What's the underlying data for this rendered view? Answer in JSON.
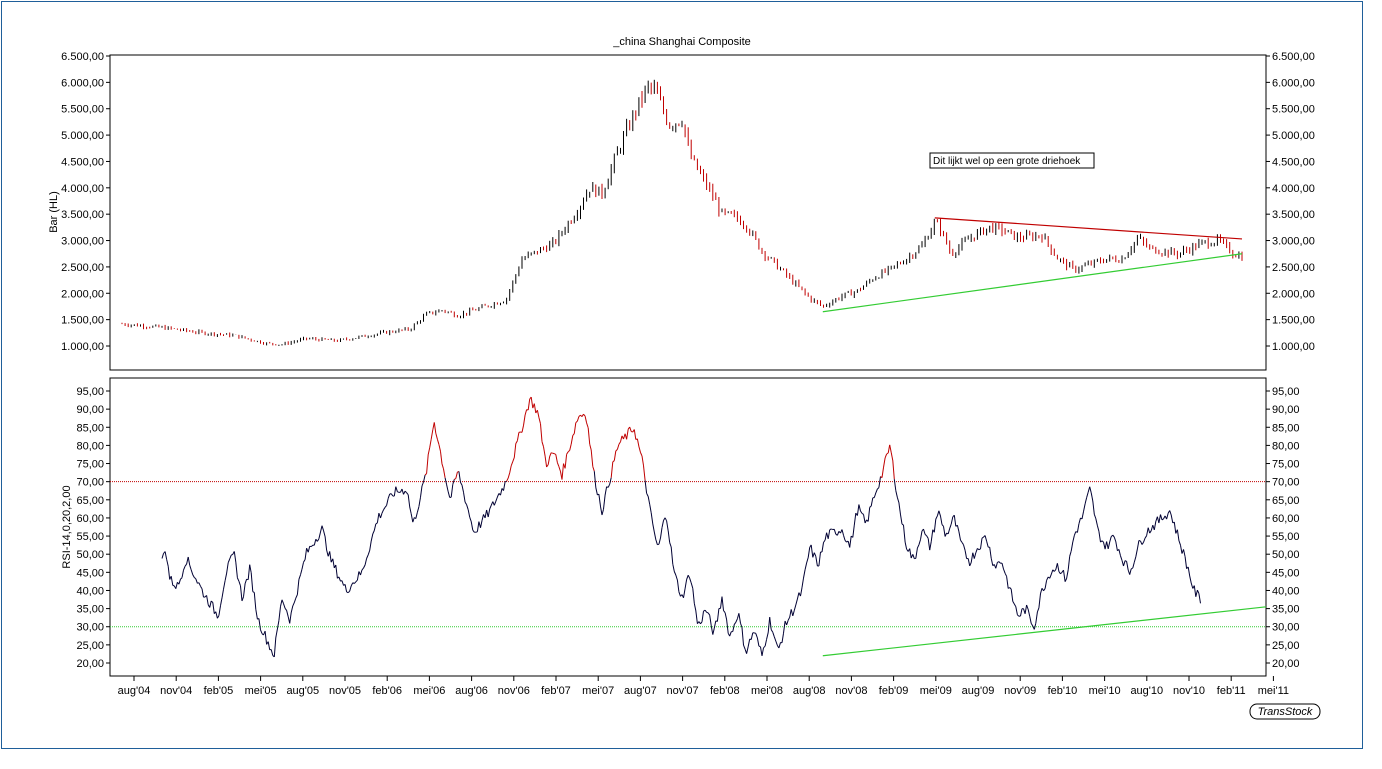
{
  "title": "_china Shanghai Composite",
  "brand": "TransStock",
  "annotation": "Dit lijkt wel op een grote driehoek",
  "colors": {
    "up_bar": "#000000",
    "down_bar": "#c00000",
    "rsi_line": "#000033",
    "rsi_overbought_segment": "#c00000",
    "resistance": "#c00000",
    "support": "#33cc33",
    "upper_level": "#c00000",
    "lower_level": "#33cc33"
  },
  "x_ticks": [
    "aug'04",
    "nov'04",
    "feb'05",
    "mei'05",
    "aug'05",
    "nov'05",
    "feb'06",
    "mei'06",
    "aug'06",
    "nov'06",
    "feb'07",
    "mei'07",
    "aug'07",
    "nov'07",
    "feb'08",
    "mei'08",
    "aug'08",
    "nov'08",
    "feb'09",
    "mei'09",
    "aug'09",
    "nov'09",
    "feb'10",
    "mei'10",
    "aug'10",
    "nov'10",
    "feb'11",
    "mei'11"
  ],
  "chart_data": [
    {
      "type": "bar",
      "panel": "price",
      "ylabel": "Bar (HL)",
      "ylim": [
        1000,
        6500
      ],
      "y_ticks": [
        "6.500,00",
        "6.000,00",
        "5.500,00",
        "5.000,00",
        "4.500,00",
        "4.000,00",
        "3.500,00",
        "3.000,00",
        "2.500,00",
        "2.000,00",
        "1.500,00",
        "1.000,00"
      ],
      "x_range": [
        2004.5,
        2011.5
      ],
      "anchors": [
        [
          2004.5,
          1420
        ],
        [
          2004.75,
          1350
        ],
        [
          2005.0,
          1250
        ],
        [
          2005.2,
          1200
        ],
        [
          2005.4,
          1050
        ],
        [
          2005.5,
          1030
        ],
        [
          2005.65,
          1140
        ],
        [
          2005.85,
          1100
        ],
        [
          2006.0,
          1180
        ],
        [
          2006.15,
          1260
        ],
        [
          2006.3,
          1320
        ],
        [
          2006.4,
          1600
        ],
        [
          2006.5,
          1680
        ],
        [
          2006.6,
          1580
        ],
        [
          2006.75,
          1730
        ],
        [
          2006.9,
          1880
        ],
        [
          2007.0,
          2650
        ],
        [
          2007.1,
          2800
        ],
        [
          2007.2,
          2950
        ],
        [
          2007.35,
          3600
        ],
        [
          2007.42,
          4000
        ],
        [
          2007.5,
          3900
        ],
        [
          2007.6,
          4700
        ],
        [
          2007.7,
          5400
        ],
        [
          2007.78,
          5900
        ],
        [
          2007.83,
          5850
        ],
        [
          2007.92,
          5200
        ],
        [
          2008.0,
          5300
        ],
        [
          2008.05,
          4600
        ],
        [
          2008.2,
          3800
        ],
        [
          2008.25,
          3500
        ],
        [
          2008.33,
          3450
        ],
        [
          2008.4,
          3300
        ],
        [
          2008.5,
          2800
        ],
        [
          2008.6,
          2500
        ],
        [
          2008.7,
          2200
        ],
        [
          2008.8,
          1900
        ],
        [
          2008.88,
          1750
        ],
        [
          2009.0,
          1950
        ],
        [
          2009.1,
          2050
        ],
        [
          2009.2,
          2300
        ],
        [
          2009.3,
          2450
        ],
        [
          2009.4,
          2650
        ],
        [
          2009.5,
          2900
        ],
        [
          2009.58,
          3350
        ],
        [
          2009.62,
          3200
        ],
        [
          2009.68,
          2750
        ],
        [
          2009.8,
          3050
        ],
        [
          2009.92,
          3250
        ],
        [
          2010.0,
          3200
        ],
        [
          2010.1,
          3050
        ],
        [
          2010.25,
          3100
        ],
        [
          2010.35,
          2650
        ],
        [
          2010.45,
          2450
        ],
        [
          2010.55,
          2550
        ],
        [
          2010.65,
          2650
        ],
        [
          2010.75,
          2650
        ],
        [
          2010.85,
          3050
        ],
        [
          2010.92,
          2850
        ],
        [
          2011.0,
          2800
        ],
        [
          2011.1,
          2750
        ],
        [
          2011.25,
          2950
        ],
        [
          2011.35,
          3000
        ],
        [
          2011.45,
          2750
        ],
        [
          2011.5,
          2700
        ]
      ],
      "trendlines": [
        {
          "name": "resistance",
          "from": [
            2009.58,
            3430
          ],
          "to": [
            2011.5,
            3030
          ]
        },
        {
          "name": "support",
          "from": [
            2008.88,
            1650
          ],
          "to": [
            2011.5,
            2750
          ]
        }
      ]
    },
    {
      "type": "line",
      "panel": "rsi",
      "ylabel": "RSI-14,0,20,2,00",
      "ylim": [
        20,
        95
      ],
      "y_ticks": [
        "95,00",
        "90,00",
        "85,00",
        "80,00",
        "75,00",
        "70,00",
        "65,00",
        "60,00",
        "55,00",
        "50,00",
        "45,00",
        "40,00",
        "35,00",
        "30,00",
        "25,00",
        "20,00"
      ],
      "levels": [
        70,
        30
      ],
      "x_range": [
        2004.5,
        2011.5
      ],
      "anchors": [
        [
          2004.75,
          48
        ],
        [
          2004.77,
          52
        ],
        [
          2004.8,
          43
        ],
        [
          2004.85,
          41
        ],
        [
          2004.9,
          49
        ],
        [
          2005.0,
          40
        ],
        [
          2005.1,
          33
        ],
        [
          2005.15,
          45
        ],
        [
          2005.2,
          50
        ],
        [
          2005.25,
          38
        ],
        [
          2005.3,
          46
        ],
        [
          2005.35,
          32
        ],
        [
          2005.45,
          22
        ],
        [
          2005.5,
          38
        ],
        [
          2005.55,
          32
        ],
        [
          2005.65,
          50
        ],
        [
          2005.75,
          57
        ],
        [
          2005.8,
          49
        ],
        [
          2005.9,
          40
        ],
        [
          2006.0,
          45
        ],
        [
          2006.1,
          60
        ],
        [
          2006.2,
          67
        ],
        [
          2006.28,
          68
        ],
        [
          2006.32,
          58
        ],
        [
          2006.4,
          72
        ],
        [
          2006.45,
          87
        ],
        [
          2006.5,
          76
        ],
        [
          2006.55,
          65
        ],
        [
          2006.6,
          73
        ],
        [
          2006.7,
          56
        ],
        [
          2006.8,
          62
        ],
        [
          2006.9,
          70
        ],
        [
          2007.0,
          85
        ],
        [
          2007.05,
          93
        ],
        [
          2007.1,
          89
        ],
        [
          2007.15,
          75
        ],
        [
          2007.2,
          78
        ],
        [
          2007.25,
          72
        ],
        [
          2007.35,
          88
        ],
        [
          2007.4,
          89
        ],
        [
          2007.45,
          72
        ],
        [
          2007.5,
          62
        ],
        [
          2007.6,
          80
        ],
        [
          2007.7,
          85
        ],
        [
          2007.75,
          76
        ],
        [
          2007.8,
          62
        ],
        [
          2007.85,
          51
        ],
        [
          2007.9,
          62
        ],
        [
          2007.95,
          45
        ],
        [
          2008.0,
          38
        ],
        [
          2008.05,
          45
        ],
        [
          2008.1,
          30
        ],
        [
          2008.15,
          35
        ],
        [
          2008.2,
          28
        ],
        [
          2008.25,
          38
        ],
        [
          2008.3,
          27
        ],
        [
          2008.35,
          34
        ],
        [
          2008.4,
          23
        ],
        [
          2008.45,
          29
        ],
        [
          2008.5,
          22
        ],
        [
          2008.55,
          32
        ],
        [
          2008.6,
          23
        ],
        [
          2008.65,
          31
        ],
        [
          2008.7,
          35
        ],
        [
          2008.75,
          40
        ],
        [
          2008.8,
          52
        ],
        [
          2008.85,
          47
        ],
        [
          2008.9,
          55
        ],
        [
          2009.0,
          57
        ],
        [
          2009.05,
          52
        ],
        [
          2009.1,
          63
        ],
        [
          2009.15,
          58
        ],
        [
          2009.2,
          66
        ],
        [
          2009.25,
          72
        ],
        [
          2009.3,
          80
        ],
        [
          2009.35,
          65
        ],
        [
          2009.4,
          53
        ],
        [
          2009.45,
          48
        ],
        [
          2009.5,
          57
        ],
        [
          2009.55,
          52
        ],
        [
          2009.6,
          62
        ],
        [
          2009.65,
          55
        ],
        [
          2009.7,
          60
        ],
        [
          2009.75,
          52
        ],
        [
          2009.8,
          48
        ],
        [
          2009.85,
          52
        ],
        [
          2009.9,
          55
        ],
        [
          2009.95,
          47
        ],
        [
          2010.0,
          48
        ],
        [
          2010.05,
          40
        ],
        [
          2010.1,
          33
        ],
        [
          2010.15,
          35
        ],
        [
          2010.2,
          30
        ],
        [
          2010.25,
          40
        ],
        [
          2010.3,
          45
        ],
        [
          2010.35,
          47
        ],
        [
          2010.4,
          43
        ],
        [
          2010.45,
          55
        ],
        [
          2010.5,
          60
        ],
        [
          2010.55,
          68
        ],
        [
          2010.6,
          56
        ],
        [
          2010.65,
          52
        ],
        [
          2010.7,
          55
        ],
        [
          2010.75,
          49
        ],
        [
          2010.8,
          45
        ],
        [
          2010.85,
          52
        ],
        [
          2010.9,
          56
        ],
        [
          2010.95,
          58
        ],
        [
          2011.0,
          60
        ],
        [
          2011.05,
          62
        ],
        [
          2011.1,
          55
        ],
        [
          2011.15,
          48
        ],
        [
          2011.2,
          40
        ],
        [
          2011.25,
          37
        ]
      ],
      "trendlines": [
        {
          "name": "rsi-support",
          "from": [
            2008.88,
            22
          ],
          "to": [
            2011.5,
            35.5
          ]
        }
      ]
    }
  ]
}
